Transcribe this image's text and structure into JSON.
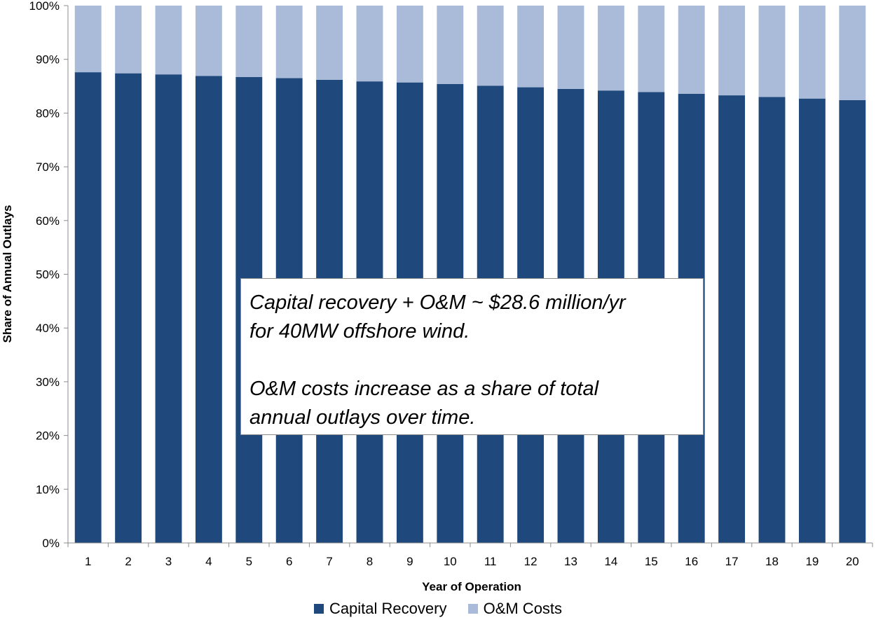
{
  "chart_data": {
    "type": "bar",
    "stacked": true,
    "categories": [
      "1",
      "2",
      "3",
      "4",
      "5",
      "6",
      "7",
      "8",
      "9",
      "10",
      "11",
      "12",
      "13",
      "14",
      "15",
      "16",
      "17",
      "18",
      "19",
      "20"
    ],
    "series": [
      {
        "name": "Capital Recovery",
        "color": "#1f497d",
        "values": [
          87.6,
          87.4,
          87.2,
          86.9,
          86.7,
          86.5,
          86.2,
          85.9,
          85.7,
          85.4,
          85.1,
          84.8,
          84.5,
          84.2,
          83.9,
          83.6,
          83.3,
          83.0,
          82.7,
          82.4
        ]
      },
      {
        "name": "O&M Costs",
        "color": "#a9bbd9",
        "values": [
          12.4,
          12.6,
          12.8,
          13.1,
          13.3,
          13.5,
          13.8,
          14.1,
          14.3,
          14.6,
          14.9,
          15.2,
          15.5,
          15.8,
          16.1,
          16.4,
          16.7,
          17.0,
          17.3,
          17.6
        ]
      }
    ],
    "xlabel": "Year of Operation",
    "ylabel": "Share of Annual Outlays",
    "ylim": [
      0,
      100
    ],
    "yticks": [
      "0%",
      "10%",
      "20%",
      "30%",
      "40%",
      "50%",
      "60%",
      "70%",
      "80%",
      "90%",
      "100%"
    ],
    "grid": false,
    "legend_position": "bottom",
    "annotation": "Capital recovery + O&M  ~ $28.6 million/yr\nfor 40MW offshore wind.\n\nO&M costs increase as a share of total\nannual outlays over time."
  }
}
